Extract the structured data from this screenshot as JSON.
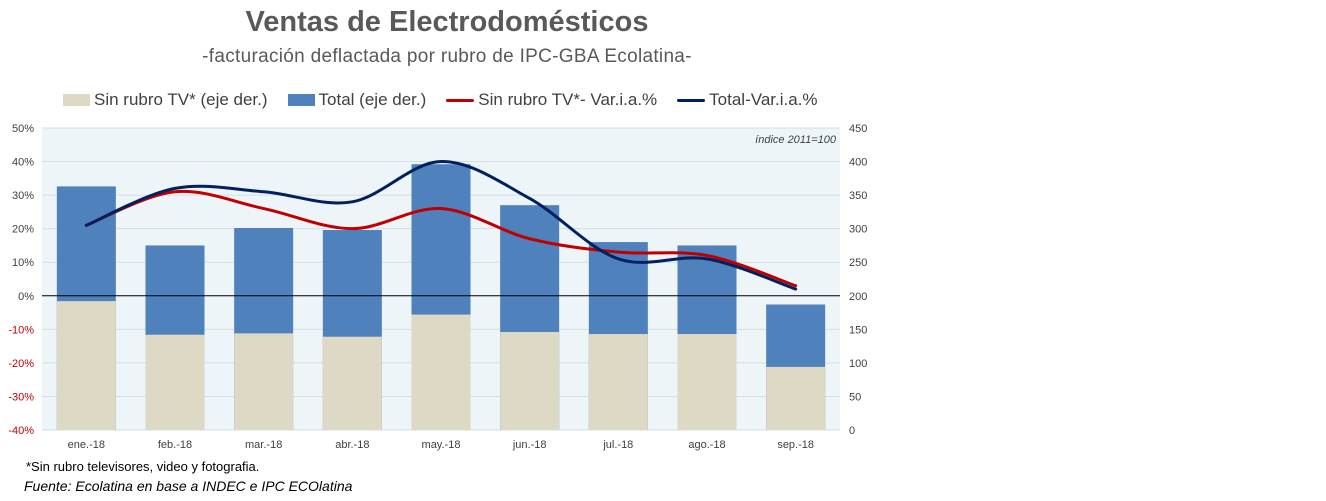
{
  "chart_data": {
    "type": "bar+line",
    "title": "Ventas de Electrodomésticos",
    "subtitle": "-facturación deflactada por rubro de IPC-GBA Ecolatina-",
    "annotation": "índice 2011=100",
    "categories": [
      "ene.-18",
      "feb.-18",
      "mar.-18",
      "abr.-18",
      "may.-18",
      "jun.-18",
      "jul.-18",
      "ago.-18",
      "sep.-18"
    ],
    "bar_series": [
      {
        "name": "Sin rubro TV* (eje der.)",
        "axis": "right",
        "color": "#ddd9c4",
        "values": [
          192,
          142,
          144,
          139,
          172,
          146,
          143,
          143,
          94
        ]
      },
      {
        "name": "Total (eje der.)",
        "axis": "right",
        "color": "#4f81bd",
        "values": [
          363,
          275,
          301,
          298,
          396,
          335,
          280,
          275,
          187
        ]
      }
    ],
    "line_series": [
      {
        "name": "Sin rubro TV*- Var.i.a.%",
        "axis": "left",
        "color": "#c00000",
        "values": [
          21,
          31,
          26,
          20,
          26,
          17,
          13,
          12,
          3
        ]
      },
      {
        "name": "Total-Var.i.a.%",
        "axis": "left",
        "color": "#002060",
        "values": [
          21,
          32,
          31,
          28,
          40,
          29,
          11,
          11,
          2
        ]
      }
    ],
    "left_axis": {
      "min": -40,
      "max": 50,
      "step": 10,
      "tick_labels": [
        "-40%",
        "-30%",
        "-20%",
        "-10%",
        "0%",
        "10%",
        "20%",
        "30%",
        "40%",
        "50%"
      ]
    },
    "right_axis": {
      "min": 0,
      "max": 450,
      "step": 50,
      "tick_labels": [
        "0",
        "50",
        "100",
        "150",
        "200",
        "250",
        "300",
        "350",
        "400",
        "450"
      ]
    },
    "grid": true,
    "legend_position": "top"
  },
  "footnote": "*Sin rubro televisores, video y fotografia.",
  "source": "Fuente: Ecolatina en base a INDEC e IPC ECOlatina"
}
